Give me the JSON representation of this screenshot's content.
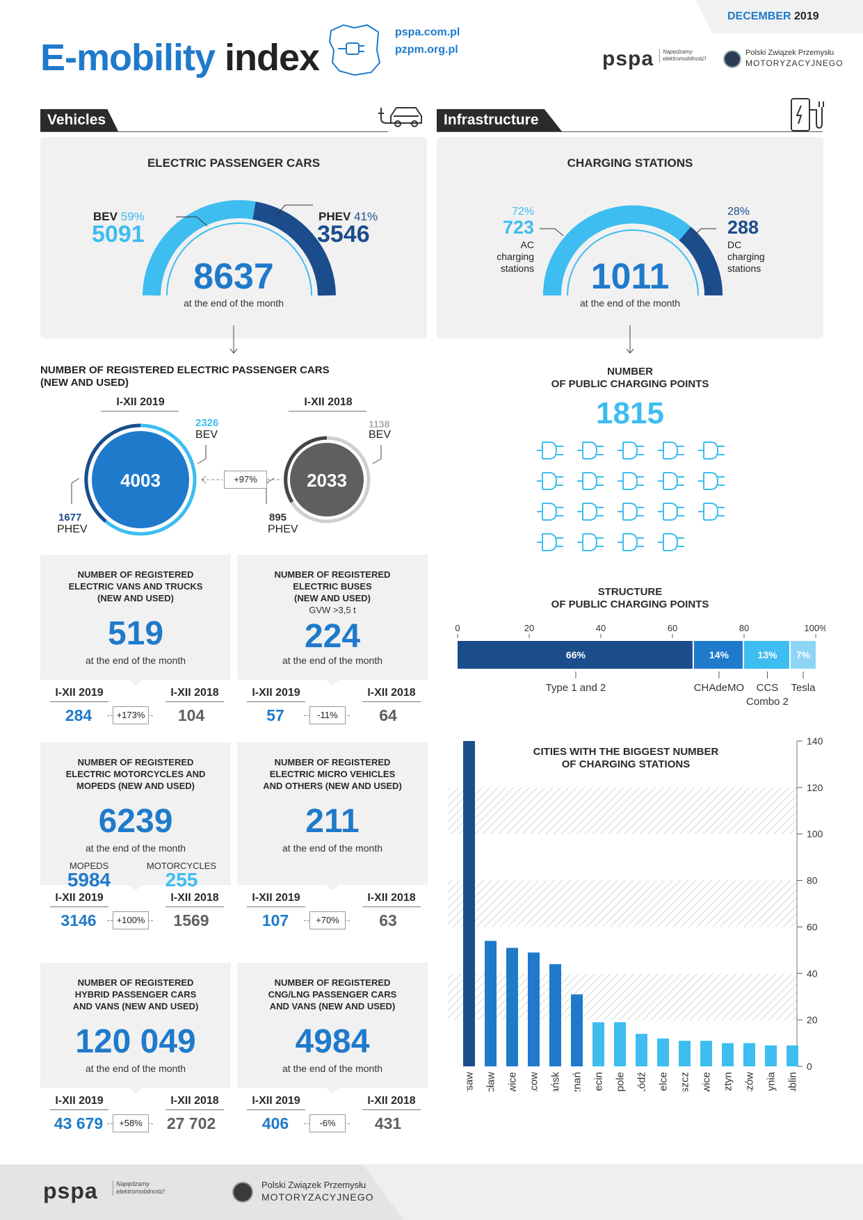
{
  "header": {
    "date_month": "DECEMBER",
    "date_year": "2019",
    "title_part1": "E-mobility",
    "title_part2": "index",
    "url1": "pspa.com.pl",
    "url2": "pzpm.org.pl",
    "pspa_logo": "pspa",
    "pspa_tagline": "Napędzamy elektromobilność!",
    "pzpm_line1": "Polski Związek Przemysłu",
    "pzpm_line2": "MOTORYZACYJNEGO"
  },
  "vehicles": {
    "section_title": "Vehicles",
    "epc": {
      "title": "ELECTRIC PASSENGER CARS",
      "bev_label": "BEV",
      "bev_pct": "59%",
      "bev_value": "5091",
      "phev_label": "PHEV",
      "phev_pct": "41%",
      "phev_value": "3546",
      "total": "8637",
      "caption": "at the end of the month"
    },
    "registered": {
      "title_line1": "NUMBER OF REGISTERED ELECTRIC PASSENGER CARS",
      "title_line2": "(NEW AND USED)",
      "y2019_label": "I-XII 2019",
      "y2019_total": "4003",
      "y2019_bev": "2326",
      "y2019_bev_label": "BEV",
      "y2019_phev": "1677",
      "y2019_phev_label": "PHEV",
      "y2018_label": "I-XII 2018",
      "y2018_total": "2033",
      "y2018_bev": "1138",
      "y2018_bev_label": "BEV",
      "y2018_phev": "895",
      "y2018_phev_label": "PHEV",
      "change": "+97%"
    },
    "cards": [
      {
        "title1": "NUMBER OF REGISTERED",
        "title2": "ELECTRIC VANS AND TRUCKS",
        "title3": "(NEW AND USED)",
        "sub": "",
        "value": "519",
        "caption": "at the end of the month",
        "y2019_label": "I-XII 2019",
        "y2019": "284",
        "y2018_label": "I-XII 2018",
        "y2018": "104",
        "change": "+173%"
      },
      {
        "title1": "NUMBER OF REGISTERED",
        "title2": "ELECTRIC BUSES",
        "title3": "(NEW AND USED)",
        "sub": "GVW >3,5 t",
        "value": "224",
        "caption": "at the end of the month",
        "y2019_label": "I-XII 2019",
        "y2019": "57",
        "y2018_label": "I-XII 2018",
        "y2018": "64",
        "change": "-11%"
      },
      {
        "title1": "NUMBER OF REGISTERED",
        "title2": "ELECTRIC MOTORCYCLES AND",
        "title3": "MOPEDS (NEW AND USED)",
        "sub": "",
        "value": "6239",
        "caption": "at the end of the month",
        "y2019_label": "I-XII 2019",
        "y2019": "3146",
        "y2018_label": "I-XII 2018",
        "y2018": "1569",
        "change": "+100%",
        "mopeds_label": "MOPEDS",
        "mopeds": "5984",
        "moto_label": "MOTORCYCLES",
        "moto": "255"
      },
      {
        "title1": "NUMBER OF REGISTERED",
        "title2": "ELECTRIC MICRO VEHICLES",
        "title3": "AND OTHERS (NEW AND USED)",
        "sub": "",
        "value": "211",
        "caption": "at the end of the month",
        "y2019_label": "I-XII 2019",
        "y2019": "107",
        "y2018_label": "I-XII 2018",
        "y2018": "63",
        "change": "+70%"
      },
      {
        "title1": "NUMBER OF REGISTERED",
        "title2": "HYBRID PASSENGER CARS",
        "title3": "AND VANS (NEW AND USED)",
        "sub": "",
        "value": "120 049",
        "caption": "at the end of the month",
        "y2019_label": "I-XII 2019",
        "y2019": "43 679",
        "y2018_label": "I-XII 2018",
        "y2018": "27 702",
        "change": "+58%"
      },
      {
        "title1": "NUMBER OF REGISTERED",
        "title2": "CNG/LNG PASSENGER CARS",
        "title3": "AND VANS (NEW AND USED)",
        "sub": "",
        "value": "4984",
        "caption": "at the end of the month",
        "y2019_label": "I-XII 2019",
        "y2019": "406",
        "y2018_label": "I-XII 2018",
        "y2018": "431",
        "change": "-6%"
      }
    ]
  },
  "infrastructure": {
    "section_title": "Infrastructure",
    "stations": {
      "title": "CHARGING STATIONS",
      "ac_pct": "72%",
      "ac_value": "723",
      "ac_label1": "AC",
      "ac_label2": "charging",
      "ac_label3": "stations",
      "dc_pct": "28%",
      "dc_value": "288",
      "dc_label1": "DC",
      "dc_label2": "charging",
      "dc_label3": "stations",
      "total": "1011",
      "caption": "at the end of the month"
    },
    "points": {
      "title_line1": "NUMBER",
      "title_line2": "OF PUBLIC CHARGING POINTS",
      "value": "1815",
      "icon_count": 19
    },
    "structure": {
      "title_line1": "STRUCTURE",
      "title_line2": "OF PUBLIC CHARGING POINTS"
    },
    "cities": {
      "title_line1": "CITIES WITH THE BIGGEST NUMBER",
      "title_line2": "OF CHARGING STATIONS"
    }
  },
  "footer": {
    "pspa_logo": "pspa",
    "pspa_tagline": "Napędzamy elektromobilność!",
    "pzpm_line1": "Polski Związek Przemysłu",
    "pzpm_line2": "MOTORYZACYJNEGO"
  },
  "colors": {
    "dark": "#1b4c8c",
    "mid": "#1f7acb",
    "light": "#3dbdf0",
    "grey": "#5f5f5f",
    "panel": "#f1f1f1"
  },
  "chart_data": [
    {
      "type": "bar",
      "orientation": "horizontal-stacked",
      "title": "STRUCTURE OF PUBLIC CHARGING POINTS",
      "categories": [
        "Type 1 and 2",
        "CHAdeMO",
        "CCS Combo 2",
        "Tesla"
      ],
      "values": [
        66,
        14,
        13,
        7
      ],
      "value_labels": [
        "66%",
        "14%",
        "13%",
        "7%"
      ],
      "colors": [
        "#1b4c8c",
        "#1f7acb",
        "#3dbdf0",
        "#8ed5f5"
      ],
      "ticks": [
        "0",
        "20",
        "40",
        "60",
        "80",
        "100%"
      ],
      "xlim": [
        0,
        100
      ]
    },
    {
      "type": "bar",
      "title": "CITIES WITH THE BIGGEST NUMBER OF CHARGING STATIONS",
      "categories": [
        "Warsaw",
        "Wrocław",
        "Katowice",
        "Cracow",
        "Gdańsk",
        "Poznań",
        "Szczecin",
        "Opole",
        "Łódź",
        "Kielce",
        "Bydgoszcz",
        "Gliwice",
        "Olsztyn",
        "Rzeszów",
        "Gdynia",
        "Lublin"
      ],
      "values": [
        140,
        54,
        51,
        49,
        44,
        31,
        19,
        19,
        14,
        12,
        11,
        11,
        10,
        10,
        9,
        9
      ],
      "yticks": [
        "0",
        "20",
        "40",
        "60",
        "80",
        "100",
        "120",
        "140"
      ],
      "ylim": [
        0,
        140
      ]
    }
  ]
}
